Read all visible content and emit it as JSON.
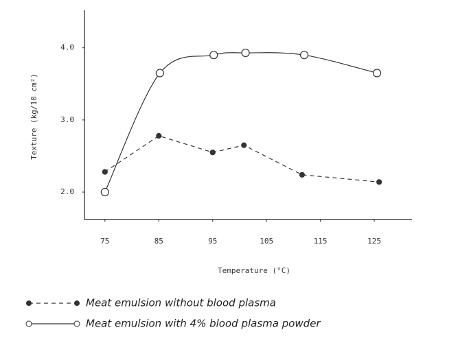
{
  "chart_data": {
    "type": "line",
    "x_label": "Temperature (°C)",
    "y_label": "Texture (kg/10 cm²)",
    "xlim": [
      71.2,
      132
    ],
    "ylim": [
      1.62,
      4.52
    ],
    "xticks": [
      75,
      85,
      95,
      105,
      115,
      125
    ],
    "yticks": [
      {
        "value": 2,
        "label": "2.0"
      },
      {
        "value": 3,
        "label": "3.0"
      },
      {
        "value": 4,
        "label": "4.0"
      }
    ],
    "series": [
      {
        "name": "Meat emulsion  without blood plasma",
        "color": "#333333",
        "dashed": true,
        "filled": true,
        "x": [
          75,
          85,
          95,
          100.8,
          111.6,
          125.9
        ],
        "values": [
          2.28,
          2.78,
          2.55,
          2.65,
          2.24,
          2.14
        ]
      },
      {
        "name": "Meat emulsion with 4%  blood plasma powder",
        "color": "#333333",
        "dashed": false,
        "filled": false,
        "x": [
          75,
          85.2,
          95.2,
          101.1,
          112,
          125.5
        ],
        "values": [
          2.0,
          3.65,
          3.9,
          3.93,
          3.9,
          3.65
        ]
      }
    ]
  }
}
